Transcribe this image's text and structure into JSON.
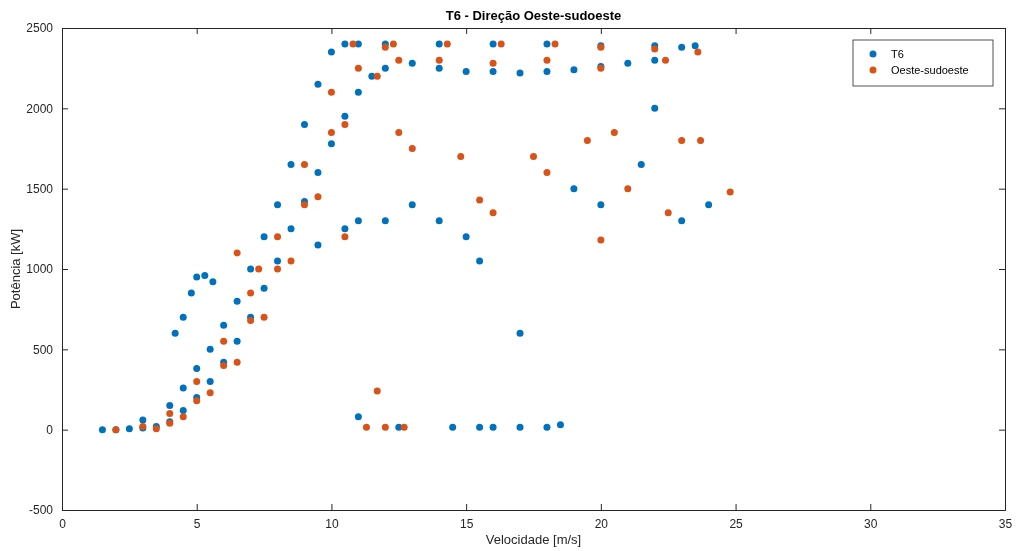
{
  "chart_data": {
    "type": "scatter",
    "title": "T6 - Direção Oeste-sudoeste",
    "xlabel": "Velocidade [m/s]",
    "ylabel": "Potência [kW]",
    "xlim": [
      0,
      35
    ],
    "xticks": [
      0,
      5,
      10,
      15,
      20,
      25,
      30,
      35
    ],
    "ylim": [
      -500,
      2500
    ],
    "yticks": [
      -500,
      0,
      500,
      1000,
      1500,
      2000,
      2500
    ],
    "grid": false,
    "legend": "top right",
    "marker": "circle",
    "series": [
      {
        "name": "T6",
        "color": "#0072bd",
        "x": [
          1.5,
          2,
          2.5,
          3,
          3.5,
          4,
          4.5,
          5,
          5.5,
          6,
          6.5,
          7,
          7.5,
          8,
          8.5,
          9,
          9.5,
          10,
          10.5,
          11,
          11.5,
          12,
          13,
          14,
          15,
          16,
          17,
          18,
          19,
          20,
          21,
          22,
          23,
          3,
          4,
          4.5,
          5,
          5.5,
          6,
          6.5,
          7,
          7.5,
          8,
          8.5,
          9,
          9.5,
          10,
          10.5,
          11,
          12,
          14,
          16,
          18,
          20,
          22,
          23.5,
          4.5,
          4.8,
          5,
          5.3,
          5.6,
          4.2,
          9.5,
          10.5,
          11,
          12,
          13,
          14,
          15,
          15.5,
          17,
          11,
          12.5,
          14.5,
          15.5,
          16,
          17,
          18,
          18.5,
          20,
          22,
          23,
          24,
          21.5,
          19
        ],
        "values": [
          0,
          0,
          5,
          10,
          20,
          50,
          120,
          200,
          300,
          420,
          550,
          700,
          880,
          1050,
          1250,
          1420,
          1600,
          1780,
          1950,
          2100,
          2200,
          2250,
          2280,
          2250,
          2230,
          2230,
          2220,
          2230,
          2240,
          2260,
          2280,
          2300,
          2380,
          60,
          150,
          260,
          380,
          500,
          650,
          800,
          1000,
          1200,
          1400,
          1650,
          1900,
          2150,
          2350,
          2400,
          2400,
          2400,
          2400,
          2400,
          2400,
          2390,
          2390,
          2390,
          700,
          850,
          950,
          960,
          920,
          600,
          1150,
          1250,
          1300,
          1300,
          1400,
          1300,
          1200,
          1050,
          600,
          80,
          15,
          15,
          15,
          15,
          15,
          15,
          30,
          1400,
          2000,
          1300,
          1400,
          1650,
          1500
        ]
      },
      {
        "name": "Oeste-sudoeste",
        "color": "#d95319",
        "x": [
          2,
          3,
          4,
          5,
          6,
          7,
          8,
          9,
          10,
          10.8,
          12.3,
          14.3,
          16.3,
          18.3,
          20,
          22,
          23.6,
          3.5,
          4.5,
          5.5,
          6.5,
          7.5,
          8.5,
          9.5,
          10.5,
          11.7,
          12.5,
          14,
          16,
          18,
          20,
          22.4,
          4,
          5,
          6,
          7,
          8,
          9,
          10,
          11,
          12,
          6.5,
          7.3,
          11.7,
          11.3,
          12,
          12.7,
          10.5,
          12.5,
          14.8,
          15.5,
          16,
          18,
          19.5,
          20.5,
          21,
          22.5,
          23,
          24.8,
          20,
          23.7,
          17.5,
          13
        ],
        "values": [
          0,
          20,
          100,
          300,
          550,
          850,
          1200,
          1650,
          2100,
          2400,
          2400,
          2400,
          2400,
          2400,
          2380,
          2370,
          2350,
          5,
          80,
          230,
          420,
          700,
          1050,
          1450,
          1900,
          2200,
          2300,
          2300,
          2280,
          2300,
          2250,
          2300,
          40,
          180,
          400,
          680,
          1000,
          1400,
          1850,
          2250,
          2380,
          1100,
          1000,
          240,
          15,
          15,
          15,
          1200,
          1850,
          1700,
          1430,
          1350,
          1600,
          1800,
          1850,
          1500,
          1350,
          1800,
          1480,
          1180,
          1800,
          1700,
          1750
        ]
      }
    ]
  }
}
